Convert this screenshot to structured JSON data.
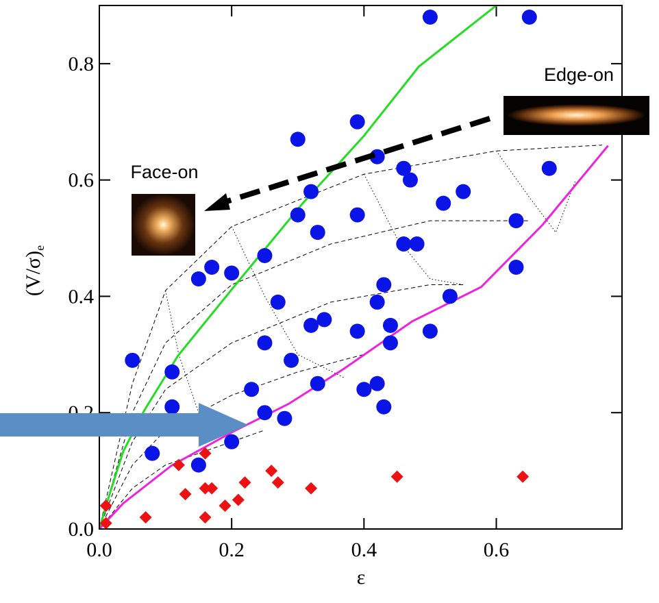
{
  "chart_data": {
    "type": "scatter",
    "x_label": "ε",
    "y_label": "(V/σ)",
    "y_label_subscript": "e",
    "xlim": [
      0,
      0.79
    ],
    "ylim": [
      0,
      0.9
    ],
    "xticks": [
      {
        "value": 0,
        "label": "0.0"
      },
      0.2,
      0.4,
      0.6
    ],
    "yticks": [
      {
        "value": 0,
        "label": "0.0"
      },
      0.2,
      0.4,
      0.6,
      0.8
    ],
    "series": [
      {
        "marker": "circle",
        "color": "#0a14e6",
        "x": [
          0.05,
          0.08,
          0.11,
          0.11,
          0.15,
          0.15,
          0.17,
          0.2,
          0.2,
          0.23,
          0.25,
          0.25,
          0.25,
          0.27,
          0.28,
          0.29,
          0.3,
          0.3,
          0.32,
          0.33,
          0.32,
          0.34,
          0.33,
          0.39,
          0.39,
          0.39,
          0.4,
          0.42,
          0.42,
          0.42,
          0.43,
          0.43,
          0.44,
          0.44,
          0.46,
          0.47,
          0.46,
          0.48,
          0.5,
          0.52,
          0.53,
          0.55,
          0.5,
          0.65,
          0.63,
          0.63,
          0.68
        ],
        "y": [
          0.29,
          0.13,
          0.27,
          0.21,
          0.11,
          0.43,
          0.45,
          0.44,
          0.15,
          0.24,
          0.47,
          0.32,
          0.2,
          0.39,
          0.19,
          0.29,
          0.67,
          0.54,
          0.58,
          0.51,
          0.35,
          0.36,
          0.25,
          0.7,
          0.54,
          0.34,
          0.24,
          0.64,
          0.39,
          0.25,
          0.42,
          0.21,
          0.35,
          0.32,
          0.62,
          0.6,
          0.49,
          0.49,
          0.34,
          0.56,
          0.4,
          0.58,
          0.88,
          0.88,
          0.53,
          0.45,
          0.62
        ]
      },
      {
        "marker": "diamond",
        "color": "#ee1111",
        "x": [
          0.01,
          0.01,
          0.07,
          0.12,
          0.13,
          0.16,
          0.16,
          0.16,
          0.17,
          0.19,
          0.21,
          0.22,
          0.26,
          0.27,
          0.32,
          0.45,
          0.64
        ],
        "y": [
          0.01,
          0.04,
          0.02,
          0.11,
          0.06,
          0.13,
          0.02,
          0.07,
          0.07,
          0.04,
          0.05,
          0.08,
          0.1,
          0.08,
          0.07,
          0.09,
          0.09
        ]
      }
    ],
    "lines": [
      {
        "color": "#22dd22",
        "x": [
          0,
          0.016,
          0.036,
          0.068,
          0.119,
          0.203,
          0.306,
          0.4,
          0.483,
          0.6
        ],
        "y": [
          0,
          0.062,
          0.133,
          0.204,
          0.298,
          0.416,
          0.558,
          0.676,
          0.795,
          0.9
        ]
      },
      {
        "color": "#ee22dd",
        "x": [
          0,
          0.036,
          0.109,
          0.203,
          0.286,
          0.369,
          0.473,
          0.577,
          0.67,
          0.769
        ],
        "y": [
          0,
          0.044,
          0.109,
          0.168,
          0.215,
          0.275,
          0.357,
          0.416,
          0.523,
          0.659
        ]
      }
    ],
    "model_curves": [
      {
        "style": "dashed",
        "x": [
          0,
          0.05,
          0.1,
          0.2,
          0.4,
          0.6,
          0.76
        ],
        "y": [
          0,
          0.25,
          0.41,
          0.52,
          0.61,
          0.65,
          0.66
        ]
      },
      {
        "style": "dashed",
        "x": [
          0,
          0.05,
          0.1,
          0.2,
          0.35,
          0.5,
          0.65
        ],
        "y": [
          0,
          0.2,
          0.32,
          0.42,
          0.49,
          0.53,
          0.53
        ]
      },
      {
        "style": "dashed",
        "x": [
          0,
          0.05,
          0.1,
          0.2,
          0.35,
          0.5,
          0.55
        ],
        "y": [
          0,
          0.15,
          0.24,
          0.32,
          0.39,
          0.42,
          0.42
        ]
      },
      {
        "style": "dashed",
        "x": [
          0,
          0.05,
          0.1,
          0.2,
          0.3,
          0.4
        ],
        "y": [
          0,
          0.11,
          0.17,
          0.23,
          0.27,
          0.3
        ]
      },
      {
        "style": "dashed",
        "x": [
          0,
          0.05,
          0.1,
          0.2,
          0.25
        ],
        "y": [
          0,
          0.07,
          0.11,
          0.15,
          0.17
        ]
      },
      {
        "style": "dotted",
        "x": [
          0.1,
          0.12,
          0.15,
          0.2
        ],
        "y": [
          0.41,
          0.3,
          0.2,
          0.16
        ]
      },
      {
        "style": "dotted",
        "x": [
          0.2,
          0.25,
          0.3,
          0.37
        ],
        "y": [
          0.52,
          0.4,
          0.3,
          0.26
        ]
      },
      {
        "style": "dotted",
        "x": [
          0.4,
          0.45,
          0.5,
          0.55
        ],
        "y": [
          0.61,
          0.5,
          0.43,
          0.42
        ]
      },
      {
        "style": "dotted",
        "x": [
          0.6,
          0.65,
          0.69,
          0.72
        ],
        "y": [
          0.65,
          0.57,
          0.51,
          0.6
        ]
      }
    ],
    "annotations": {
      "edge_on": "Edge-on",
      "face_on": "Face-on"
    }
  }
}
